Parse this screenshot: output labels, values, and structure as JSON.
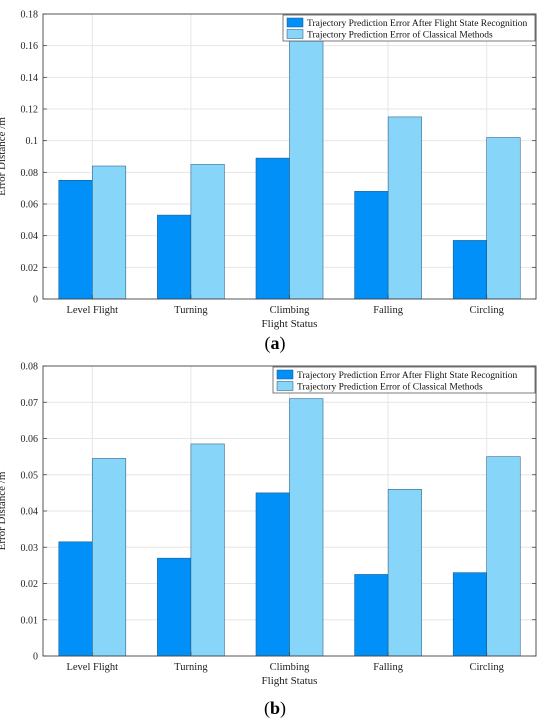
{
  "chart_data": [
    {
      "type": "bar",
      "panel_label": "a",
      "categories": [
        "Level Flight",
        "Turning",
        "Climbing",
        "Falling",
        "Circling"
      ],
      "series": [
        {
          "name": "Trajectory Prediction Error After Flight State Recognition",
          "color": "#0090f8",
          "values": [
            0.075,
            0.053,
            0.089,
            0.068,
            0.037
          ]
        },
        {
          "name": "Trajectory Prediction Error of Classical Methods",
          "color": "#87d5f8",
          "values": [
            0.084,
            0.085,
            0.163,
            0.115,
            0.102
          ]
        }
      ],
      "xlabel": "Flight Status",
      "ylabel": "Error Distance /m",
      "ylim": [
        0,
        0.18
      ],
      "yticks": [
        "0",
        "0.02",
        "0.04",
        "0.06",
        "0.08",
        "0.1",
        "0.12",
        "0.14",
        "0.16",
        "0.18"
      ],
      "grid": true,
      "legend_position": "top-right"
    },
    {
      "type": "bar",
      "panel_label": "b",
      "categories": [
        "Level Flight",
        "Turning",
        "Climbing",
        "Falling",
        "Circling"
      ],
      "series": [
        {
          "name": "Trajectory Prediction Error After Flight State Recognition",
          "color": "#0090f8",
          "values": [
            0.0315,
            0.027,
            0.045,
            0.0225,
            0.023
          ]
        },
        {
          "name": "Trajectory Prediction Error of Classical Methods",
          "color": "#87d5f8",
          "values": [
            0.0545,
            0.0585,
            0.071,
            0.046,
            0.055
          ]
        }
      ],
      "xlabel": "Flight Status",
      "ylabel": "Error Distance /m",
      "ylim": [
        0,
        0.08
      ],
      "yticks": [
        "0",
        "0.01",
        "0.02",
        "0.03",
        "0.04",
        "0.05",
        "0.06",
        "0.07",
        "0.08"
      ],
      "grid": true,
      "legend_position": "top-right"
    }
  ]
}
